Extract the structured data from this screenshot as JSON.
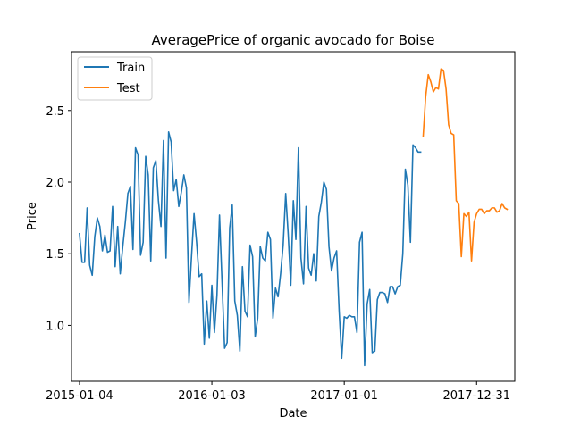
{
  "chart_data": {
    "type": "line",
    "title": "AveragePrice of organic avocado for Boise",
    "xlabel": "Date",
    "ylabel": "Price",
    "x_ticks": [
      "2015-01-04",
      "2016-01-03",
      "2017-01-01",
      "2017-12-31"
    ],
    "y_ticks": [
      "1.0",
      "1.5",
      "2.0",
      "2.5"
    ],
    "xlim": [
      "2014-12-13",
      "2018-04-15"
    ],
    "ylim": [
      0.61,
      2.91
    ],
    "grid": false,
    "legend": {
      "placement": "top-left",
      "entries": [
        "Train",
        "Test"
      ]
    },
    "series": [
      {
        "name": "Train",
        "color": "#1f77b4",
        "points": [
          [
            "2015-01-04",
            1.64
          ],
          [
            "2015-01-11",
            1.44
          ],
          [
            "2015-01-18",
            1.44
          ],
          [
            "2015-01-25",
            1.82
          ],
          [
            "2015-02-01",
            1.42
          ],
          [
            "2015-02-08",
            1.35
          ],
          [
            "2015-02-15",
            1.62
          ],
          [
            "2015-02-22",
            1.75
          ],
          [
            "2015-03-01",
            1.69
          ],
          [
            "2015-03-08",
            1.52
          ],
          [
            "2015-03-15",
            1.63
          ],
          [
            "2015-03-22",
            1.51
          ],
          [
            "2015-03-29",
            1.52
          ],
          [
            "2015-04-05",
            1.83
          ],
          [
            "2015-04-12",
            1.41
          ],
          [
            "2015-04-19",
            1.69
          ],
          [
            "2015-04-26",
            1.36
          ],
          [
            "2015-05-03",
            1.55
          ],
          [
            "2015-05-10",
            1.72
          ],
          [
            "2015-05-17",
            1.92
          ],
          [
            "2015-05-24",
            1.97
          ],
          [
            "2015-05-31",
            1.53
          ],
          [
            "2015-06-07",
            2.24
          ],
          [
            "2015-06-14",
            2.19
          ],
          [
            "2015-06-21",
            1.49
          ],
          [
            "2015-06-28",
            1.58
          ],
          [
            "2015-07-05",
            2.18
          ],
          [
            "2015-07-12",
            2.05
          ],
          [
            "2015-07-19",
            1.45
          ],
          [
            "2015-07-26",
            2.1
          ],
          [
            "2015-08-02",
            2.15
          ],
          [
            "2015-08-09",
            1.87
          ],
          [
            "2015-08-16",
            1.69
          ],
          [
            "2015-08-23",
            2.29
          ],
          [
            "2015-08-30",
            1.47
          ],
          [
            "2015-09-06",
            2.35
          ],
          [
            "2015-09-13",
            2.28
          ],
          [
            "2015-09-20",
            1.94
          ],
          [
            "2015-09-27",
            2.02
          ],
          [
            "2015-10-04",
            1.83
          ],
          [
            "2015-10-11",
            1.93
          ],
          [
            "2015-10-18",
            2.05
          ],
          [
            "2015-10-25",
            1.96
          ],
          [
            "2015-11-01",
            1.16
          ],
          [
            "2015-11-08",
            1.48
          ],
          [
            "2015-11-15",
            1.78
          ],
          [
            "2015-11-22",
            1.58
          ],
          [
            "2015-11-29",
            1.34
          ],
          [
            "2015-12-06",
            1.36
          ],
          [
            "2015-12-13",
            0.87
          ],
          [
            "2015-12-20",
            1.17
          ],
          [
            "2015-12-27",
            0.91
          ],
          [
            "2016-01-03",
            1.28
          ],
          [
            "2016-01-10",
            0.95
          ],
          [
            "2016-01-17",
            1.21
          ],
          [
            "2016-01-24",
            1.77
          ],
          [
            "2016-01-31",
            1.3
          ],
          [
            "2016-02-07",
            0.84
          ],
          [
            "2016-02-14",
            0.88
          ],
          [
            "2016-02-21",
            1.68
          ],
          [
            "2016-02-28",
            1.84
          ],
          [
            "2016-03-06",
            1.17
          ],
          [
            "2016-03-13",
            1.07
          ],
          [
            "2016-03-20",
            0.82
          ],
          [
            "2016-03-27",
            1.41
          ],
          [
            "2016-04-03",
            1.1
          ],
          [
            "2016-04-10",
            1.06
          ],
          [
            "2016-04-17",
            1.56
          ],
          [
            "2016-04-24",
            1.48
          ],
          [
            "2016-05-01",
            0.92
          ],
          [
            "2016-05-08",
            1.05
          ],
          [
            "2016-05-15",
            1.55
          ],
          [
            "2016-05-22",
            1.47
          ],
          [
            "2016-05-29",
            1.45
          ],
          [
            "2016-06-05",
            1.65
          ],
          [
            "2016-06-12",
            1.6
          ],
          [
            "2016-06-19",
            1.05
          ],
          [
            "2016-06-26",
            1.26
          ],
          [
            "2016-07-03",
            1.2
          ],
          [
            "2016-07-10",
            1.36
          ],
          [
            "2016-07-17",
            1.56
          ],
          [
            "2016-07-24",
            1.92
          ],
          [
            "2016-07-31",
            1.63
          ],
          [
            "2016-08-07",
            1.28
          ],
          [
            "2016-08-14",
            1.87
          ],
          [
            "2016-08-21",
            1.6
          ],
          [
            "2016-08-28",
            2.24
          ],
          [
            "2016-09-04",
            1.47
          ],
          [
            "2016-09-11",
            1.29
          ],
          [
            "2016-09-18",
            1.83
          ],
          [
            "2016-09-25",
            1.4
          ],
          [
            "2016-10-02",
            1.35
          ],
          [
            "2016-10-09",
            1.5
          ],
          [
            "2016-10-16",
            1.31
          ],
          [
            "2016-10-23",
            1.76
          ],
          [
            "2016-10-30",
            1.86
          ],
          [
            "2016-11-06",
            2.0
          ],
          [
            "2016-11-13",
            1.95
          ],
          [
            "2016-11-20",
            1.55
          ],
          [
            "2016-11-27",
            1.38
          ],
          [
            "2016-12-04",
            1.47
          ],
          [
            "2016-12-11",
            1.52
          ],
          [
            "2016-12-18",
            1.1
          ],
          [
            "2016-12-25",
            0.77
          ],
          [
            "2017-01-01",
            1.06
          ],
          [
            "2017-01-08",
            1.05
          ],
          [
            "2017-01-15",
            1.07
          ],
          [
            "2017-01-22",
            1.06
          ],
          [
            "2017-01-29",
            1.06
          ],
          [
            "2017-02-05",
            0.95
          ],
          [
            "2017-02-12",
            1.58
          ],
          [
            "2017-02-19",
            1.65
          ],
          [
            "2017-02-26",
            0.72
          ],
          [
            "2017-03-05",
            1.15
          ],
          [
            "2017-03-12",
            1.25
          ],
          [
            "2017-03-19",
            0.81
          ],
          [
            "2017-03-26",
            0.82
          ],
          [
            "2017-04-02",
            1.18
          ],
          [
            "2017-04-09",
            1.23
          ],
          [
            "2017-04-16",
            1.23
          ],
          [
            "2017-04-23",
            1.22
          ],
          [
            "2017-04-30",
            1.16
          ],
          [
            "2017-05-07",
            1.27
          ],
          [
            "2017-05-14",
            1.27
          ],
          [
            "2017-05-21",
            1.22
          ],
          [
            "2017-05-28",
            1.27
          ],
          [
            "2017-06-04",
            1.28
          ],
          [
            "2017-06-11",
            1.5
          ],
          [
            "2017-06-18",
            2.09
          ],
          [
            "2017-06-25",
            1.98
          ],
          [
            "2017-07-02",
            1.58
          ],
          [
            "2017-07-09",
            2.26
          ],
          [
            "2017-07-16",
            2.24
          ],
          [
            "2017-07-23",
            2.21
          ],
          [
            "2017-07-30",
            2.21
          ]
        ]
      },
      {
        "name": "Test",
        "color": "#ff7f0e",
        "points": [
          [
            "2017-08-06",
            2.32
          ],
          [
            "2017-08-13",
            2.6
          ],
          [
            "2017-08-20",
            2.75
          ],
          [
            "2017-08-27",
            2.7
          ],
          [
            "2017-09-03",
            2.63
          ],
          [
            "2017-09-10",
            2.66
          ],
          [
            "2017-09-17",
            2.65
          ],
          [
            "2017-09-24",
            2.79
          ],
          [
            "2017-10-01",
            2.78
          ],
          [
            "2017-10-08",
            2.65
          ],
          [
            "2017-10-15",
            2.4
          ],
          [
            "2017-10-22",
            2.34
          ],
          [
            "2017-10-29",
            2.33
          ],
          [
            "2017-11-05",
            1.87
          ],
          [
            "2017-11-12",
            1.85
          ],
          [
            "2017-11-19",
            1.48
          ],
          [
            "2017-11-26",
            1.78
          ],
          [
            "2017-12-03",
            1.76
          ],
          [
            "2017-12-10",
            1.79
          ],
          [
            "2017-12-17",
            1.45
          ],
          [
            "2017-12-24",
            1.72
          ],
          [
            "2017-12-31",
            1.78
          ],
          [
            "2018-01-07",
            1.81
          ],
          [
            "2018-01-14",
            1.81
          ],
          [
            "2018-01-21",
            1.78
          ],
          [
            "2018-01-28",
            1.8
          ],
          [
            "2018-02-04",
            1.8
          ],
          [
            "2018-02-11",
            1.82
          ],
          [
            "2018-02-18",
            1.82
          ],
          [
            "2018-02-25",
            1.79
          ],
          [
            "2018-03-04",
            1.8
          ],
          [
            "2018-03-11",
            1.85
          ],
          [
            "2018-03-18",
            1.82
          ],
          [
            "2018-03-25",
            1.81
          ]
        ]
      }
    ]
  }
}
